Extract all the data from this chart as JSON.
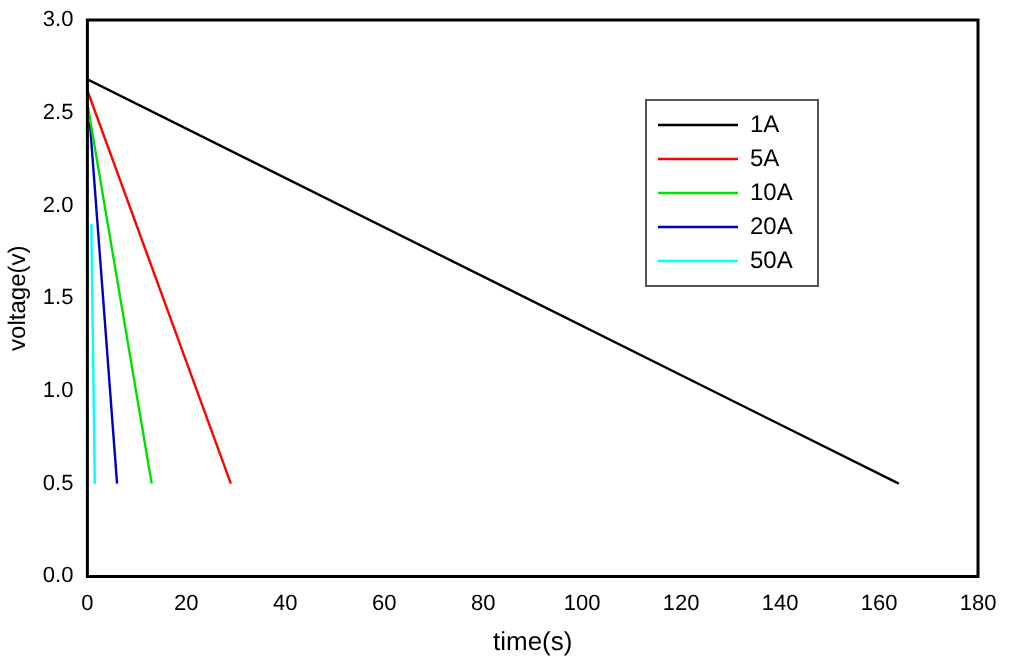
{
  "chart_data": {
    "type": "line",
    "xlabel": "time(s)",
    "ylabel": "voltage(v)",
    "xlim": [
      0,
      180
    ],
    "xticks": [
      0,
      20,
      40,
      60,
      80,
      100,
      120,
      140,
      160,
      180
    ],
    "ylim": [
      0,
      3.0
    ],
    "yticks": [
      {
        "value": 0,
        "label": "0.0"
      },
      {
        "value": 0.5,
        "label": "0.5"
      },
      {
        "value": 1,
        "label": "1.0"
      },
      {
        "value": 1.5,
        "label": "1.5"
      },
      {
        "value": 2,
        "label": "2.0"
      },
      {
        "value": 2.5,
        "label": "2.5"
      },
      {
        "value": 3,
        "label": "3.0"
      }
    ],
    "grid": false,
    "legend": "top right",
    "marker": "none",
    "line_style": "solid",
    "series": [
      {
        "name": "1A",
        "color": "#000000",
        "x": [
          0,
          164
        ],
        "values": [
          2.68,
          0.5
        ]
      },
      {
        "name": "5A",
        "color": "#ff0000",
        "x": [
          0,
          29
        ],
        "values": [
          2.62,
          0.5
        ]
      },
      {
        "name": "10A",
        "color": "#00e000",
        "x": [
          0,
          13
        ],
        "values": [
          2.55,
          0.5
        ]
      },
      {
        "name": "20A",
        "color": "#0000c0",
        "x": [
          0.5,
          6
        ],
        "values": [
          2.45,
          0.5
        ]
      },
      {
        "name": "50A",
        "color": "#00ffff",
        "x": [
          0.8,
          1.5
        ],
        "values": [
          1.9,
          0.5
        ]
      }
    ]
  }
}
